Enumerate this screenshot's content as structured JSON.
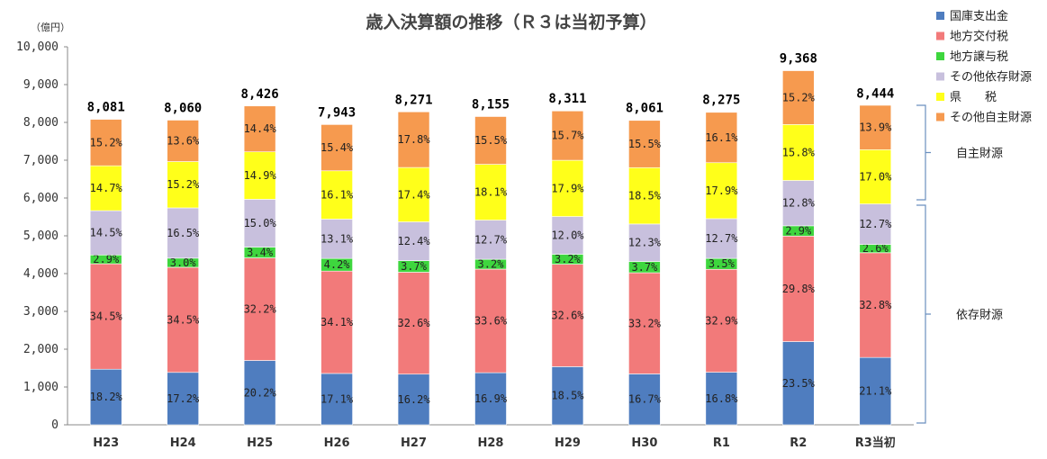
{
  "chart_data": {
    "type": "bar",
    "stacked": true,
    "title": "歳入決算額の推移（Ｒ３は当初予算）",
    "ylabel": "（億円）",
    "ylim": [
      0,
      10000
    ],
    "yticks": [
      "0",
      "1,000",
      "2,000",
      "3,000",
      "4,000",
      "5,000",
      "6,000",
      "7,000",
      "8,000",
      "9,000",
      "10,000"
    ],
    "grid": false,
    "categories": [
      "H23",
      "H24",
      "H25",
      "H26",
      "H27",
      "H28",
      "H29",
      "H30",
      "R1",
      "R2",
      "R3当初"
    ],
    "totals": [
      8081,
      8060,
      8426,
      7943,
      8271,
      8155,
      8311,
      8061,
      8275,
      9368,
      8444
    ],
    "total_labels": [
      "8,081",
      "8,060",
      "8,426",
      "7,943",
      "8,271",
      "8,155",
      "8,311",
      "8,061",
      "8,275",
      "9,368",
      "8,444"
    ],
    "series": [
      {
        "name": "国庫支出金",
        "color": "#4f7dbf",
        "percents": [
          18.2,
          17.2,
          20.2,
          17.1,
          16.2,
          16.9,
          18.5,
          16.7,
          16.8,
          23.5,
          21.1
        ]
      },
      {
        "name": "地方交付税",
        "color": "#f27a7a",
        "percents": [
          34.5,
          34.5,
          32.2,
          34.1,
          32.6,
          33.6,
          32.6,
          33.2,
          32.9,
          29.8,
          32.8
        ]
      },
      {
        "name": "地方譲与税",
        "color": "#3ed63e",
        "percents": [
          2.9,
          3.0,
          3.4,
          4.2,
          3.7,
          3.2,
          3.2,
          3.7,
          3.5,
          2.9,
          2.6
        ]
      },
      {
        "name": "その他依存財源",
        "color": "#c8c0dd",
        "percents": [
          14.5,
          16.5,
          15.0,
          13.1,
          12.4,
          12.7,
          12.0,
          12.3,
          12.7,
          12.8,
          12.7
        ]
      },
      {
        "name": "県　　税",
        "color": "#ffff1a",
        "percents": [
          14.7,
          15.2,
          14.9,
          16.1,
          17.4,
          18.1,
          17.9,
          18.5,
          17.9,
          15.8,
          17.0
        ]
      },
      {
        "name": "その他自主財源",
        "color": "#f69a4f",
        "percents": [
          15.2,
          13.6,
          14.4,
          15.4,
          17.8,
          15.5,
          15.7,
          15.5,
          16.1,
          15.2,
          13.9
        ]
      }
    ],
    "legend_position": "right",
    "groups": [
      {
        "label": "自主財源"
      },
      {
        "label": "依存財源"
      }
    ]
  }
}
